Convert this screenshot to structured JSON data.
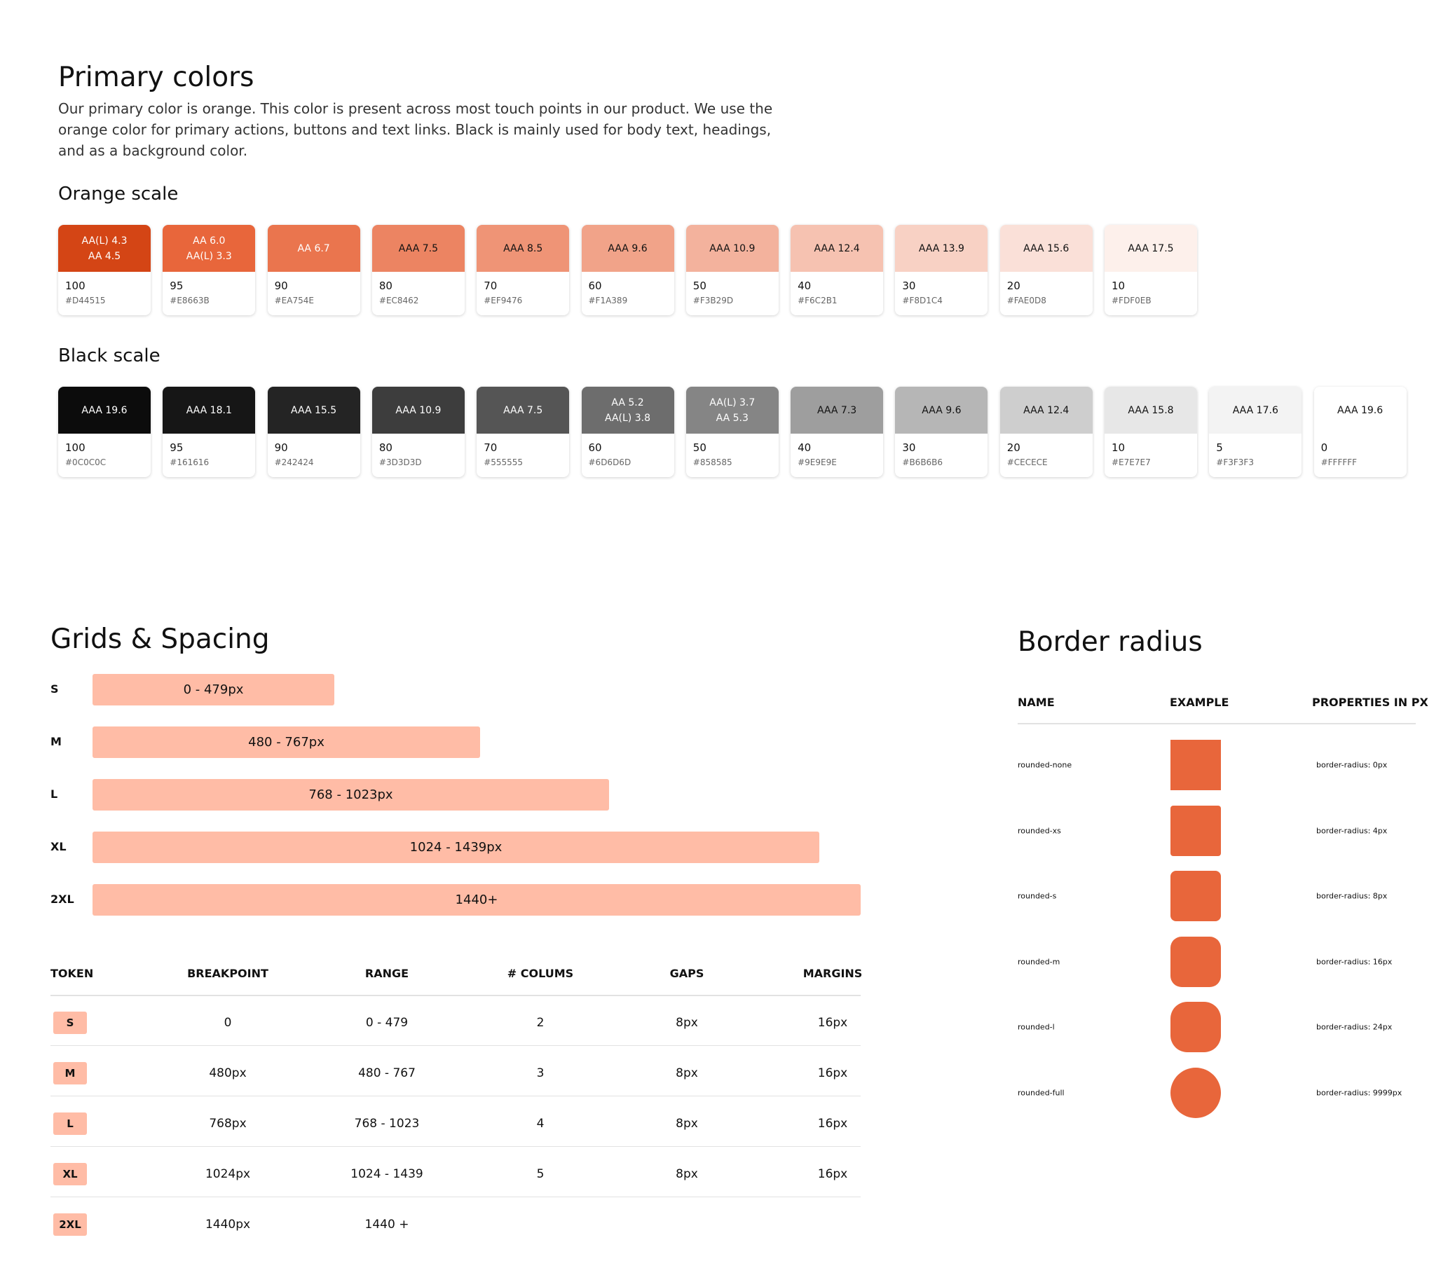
{
  "header": {
    "title": "Primary colors",
    "description": "Our primary color is orange. This color is present across most touch points in our product. We use the orange color for primary actions, buttons and text links. Black is mainly used for body text, headings, and as a background color."
  },
  "orange_scale": {
    "title": "Orange scale",
    "swatches": [
      {
        "labels": [
          "AA(L) 4.3",
          "AA 4.5"
        ],
        "step": "100",
        "hex": "#D44515"
      },
      {
        "labels": [
          "AA 6.0",
          "AA(L) 3.3"
        ],
        "step": "95",
        "hex": "#E8663B"
      },
      {
        "labels": [
          "AA 6.7"
        ],
        "step": "90",
        "hex": "#EA754E"
      },
      {
        "labels": [
          "AAA 7.5"
        ],
        "step": "80",
        "hex": "#EC8462"
      },
      {
        "labels": [
          "AAA 8.5"
        ],
        "step": "70",
        "hex": "#EF9476"
      },
      {
        "labels": [
          "AAA 9.6"
        ],
        "step": "60",
        "hex": "#F1A389"
      },
      {
        "labels": [
          "AAA 10.9"
        ],
        "step": "50",
        "hex": "#F3B29D"
      },
      {
        "labels": [
          "AAA 12.4"
        ],
        "step": "40",
        "hex": "#F6C2B1"
      },
      {
        "labels": [
          "AAA 13.9"
        ],
        "step": "30",
        "hex": "#F8D1C4"
      },
      {
        "labels": [
          "AAA 15.6"
        ],
        "step": "20",
        "hex": "#FAE0D8"
      },
      {
        "labels": [
          "AAA 17.5"
        ],
        "step": "10",
        "hex": "#FDF0EB"
      }
    ]
  },
  "black_scale": {
    "title": "Black scale",
    "swatches": [
      {
        "labels": [
          "AAA 19.6"
        ],
        "step": "100",
        "hex": "#0C0C0C"
      },
      {
        "labels": [
          "AAA 18.1"
        ],
        "step": "95",
        "hex": "#161616"
      },
      {
        "labels": [
          "AAA 15.5"
        ],
        "step": "90",
        "hex": "#242424"
      },
      {
        "labels": [
          "AAA 10.9"
        ],
        "step": "80",
        "hex": "#3D3D3D"
      },
      {
        "labels": [
          "AAA 7.5"
        ],
        "step": "70",
        "hex": "#555555"
      },
      {
        "labels": [
          "AA 5.2",
          "AA(L) 3.8"
        ],
        "step": "60",
        "hex": "#6D6D6D"
      },
      {
        "labels": [
          "AA(L) 3.7",
          "AA 5.3"
        ],
        "step": "50",
        "hex": "#858585"
      },
      {
        "labels": [
          "AAA 7.3"
        ],
        "step": "40",
        "hex": "#9E9E9E"
      },
      {
        "labels": [
          "AAA 9.6"
        ],
        "step": "30",
        "hex": "#B6B6B6"
      },
      {
        "labels": [
          "AAA 12.4"
        ],
        "step": "20",
        "hex": "#CECECE"
      },
      {
        "labels": [
          "AAA 15.8"
        ],
        "step": "10",
        "hex": "#E7E7E7"
      },
      {
        "labels": [
          "AAA 17.6"
        ],
        "step": "5",
        "hex": "#F3F3F3"
      },
      {
        "labels": [
          "AAA 19.6"
        ],
        "step": "0",
        "hex": "#FFFFFF"
      }
    ]
  },
  "grids": {
    "title": "Grids & Spacing",
    "bars": [
      {
        "token": "S",
        "range": "0 - 479px"
      },
      {
        "token": "M",
        "range": "480 - 767px"
      },
      {
        "token": "L",
        "range": "768 - 1023px"
      },
      {
        "token": "XL",
        "range": "1024 - 1439px"
      },
      {
        "token": "2XL",
        "range": "1440+"
      }
    ],
    "table": {
      "headers": [
        "TOKEN",
        "BREAKPOINT",
        "RANGE",
        "# COLUMS",
        "GAPS",
        "MARGINS"
      ],
      "rows": [
        [
          "S",
          "0",
          "0 - 479",
          "2",
          "8px",
          "16px"
        ],
        [
          "M",
          "480px",
          "480 - 767",
          "3",
          "8px",
          "16px"
        ],
        [
          "L",
          "768px",
          "768 - 1023",
          "4",
          "8px",
          "16px"
        ],
        [
          "XL",
          "1024px",
          "1024 - 1439",
          "5",
          "8px",
          "16px"
        ],
        [
          "2XL",
          "1440px",
          "1440 +"
        ]
      ]
    }
  },
  "border_radius": {
    "title": "Border radius",
    "headers": [
      "NAME",
      "EXAMPLE",
      "PROPERTIES IN PX"
    ],
    "rows": [
      {
        "name": "rounded-none",
        "property": "border-radius: 0px"
      },
      {
        "name": "rounded-xs",
        "property": "border-radius: 4px"
      },
      {
        "name": "rounded-s",
        "property": "border-radius: 8px"
      },
      {
        "name": "rounded-m",
        "property": "border-radius: 16px"
      },
      {
        "name": "rounded-l",
        "property": "border-radius: 24px"
      },
      {
        "name": "rounded-full",
        "property": "border-radius: 9999px"
      }
    ]
  }
}
